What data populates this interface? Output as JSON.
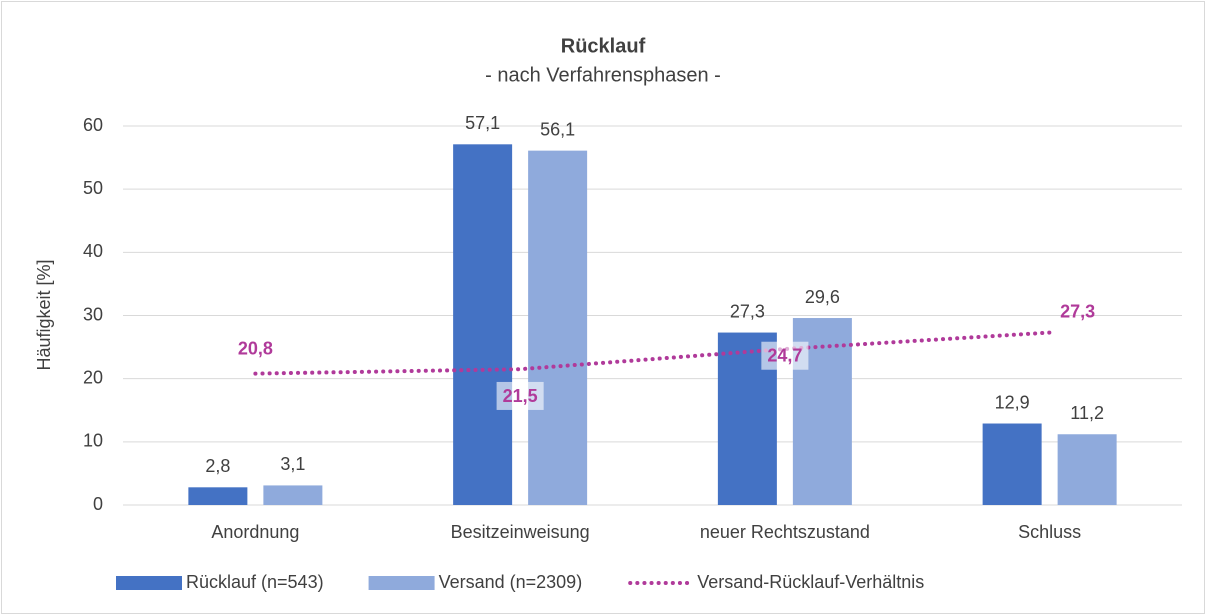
{
  "chart_data": {
    "type": "bar",
    "title": "Rücklauf",
    "subtitle": "- nach Verfahrensphasen -",
    "y_label": "Häufigkeit [%]",
    "categories": [
      "Anordnung",
      "Besitzeinweisung",
      "neuer Rechtszustand",
      "Schluss"
    ],
    "series": [
      {
        "name": "Rücklauf (n=543)",
        "type": "bar",
        "color": "#4472c4",
        "values": [
          2.8,
          57.1,
          27.3,
          12.9
        ],
        "value_labels": [
          "2,8",
          "57,1",
          "27,3",
          "12,9"
        ]
      },
      {
        "name": "Versand (n=2309)",
        "type": "bar",
        "color": "#8faadc",
        "values": [
          3.1,
          56.1,
          29.6,
          11.2
        ],
        "value_labels": [
          "3,1",
          "56,1",
          "29,6",
          "11,2"
        ]
      },
      {
        "name": "Versand-Rücklauf-Verhältnis",
        "type": "line",
        "color": "#b03a9a",
        "values": [
          20.8,
          21.5,
          24.7,
          27.3
        ],
        "value_labels": [
          "20,8",
          "21,5",
          "24,7",
          "27,3"
        ]
      }
    ],
    "ylim": [
      0,
      60
    ],
    "yticks": [
      0,
      10,
      20,
      30,
      40,
      50,
      60
    ],
    "grid": true,
    "legend": "bottom"
  }
}
